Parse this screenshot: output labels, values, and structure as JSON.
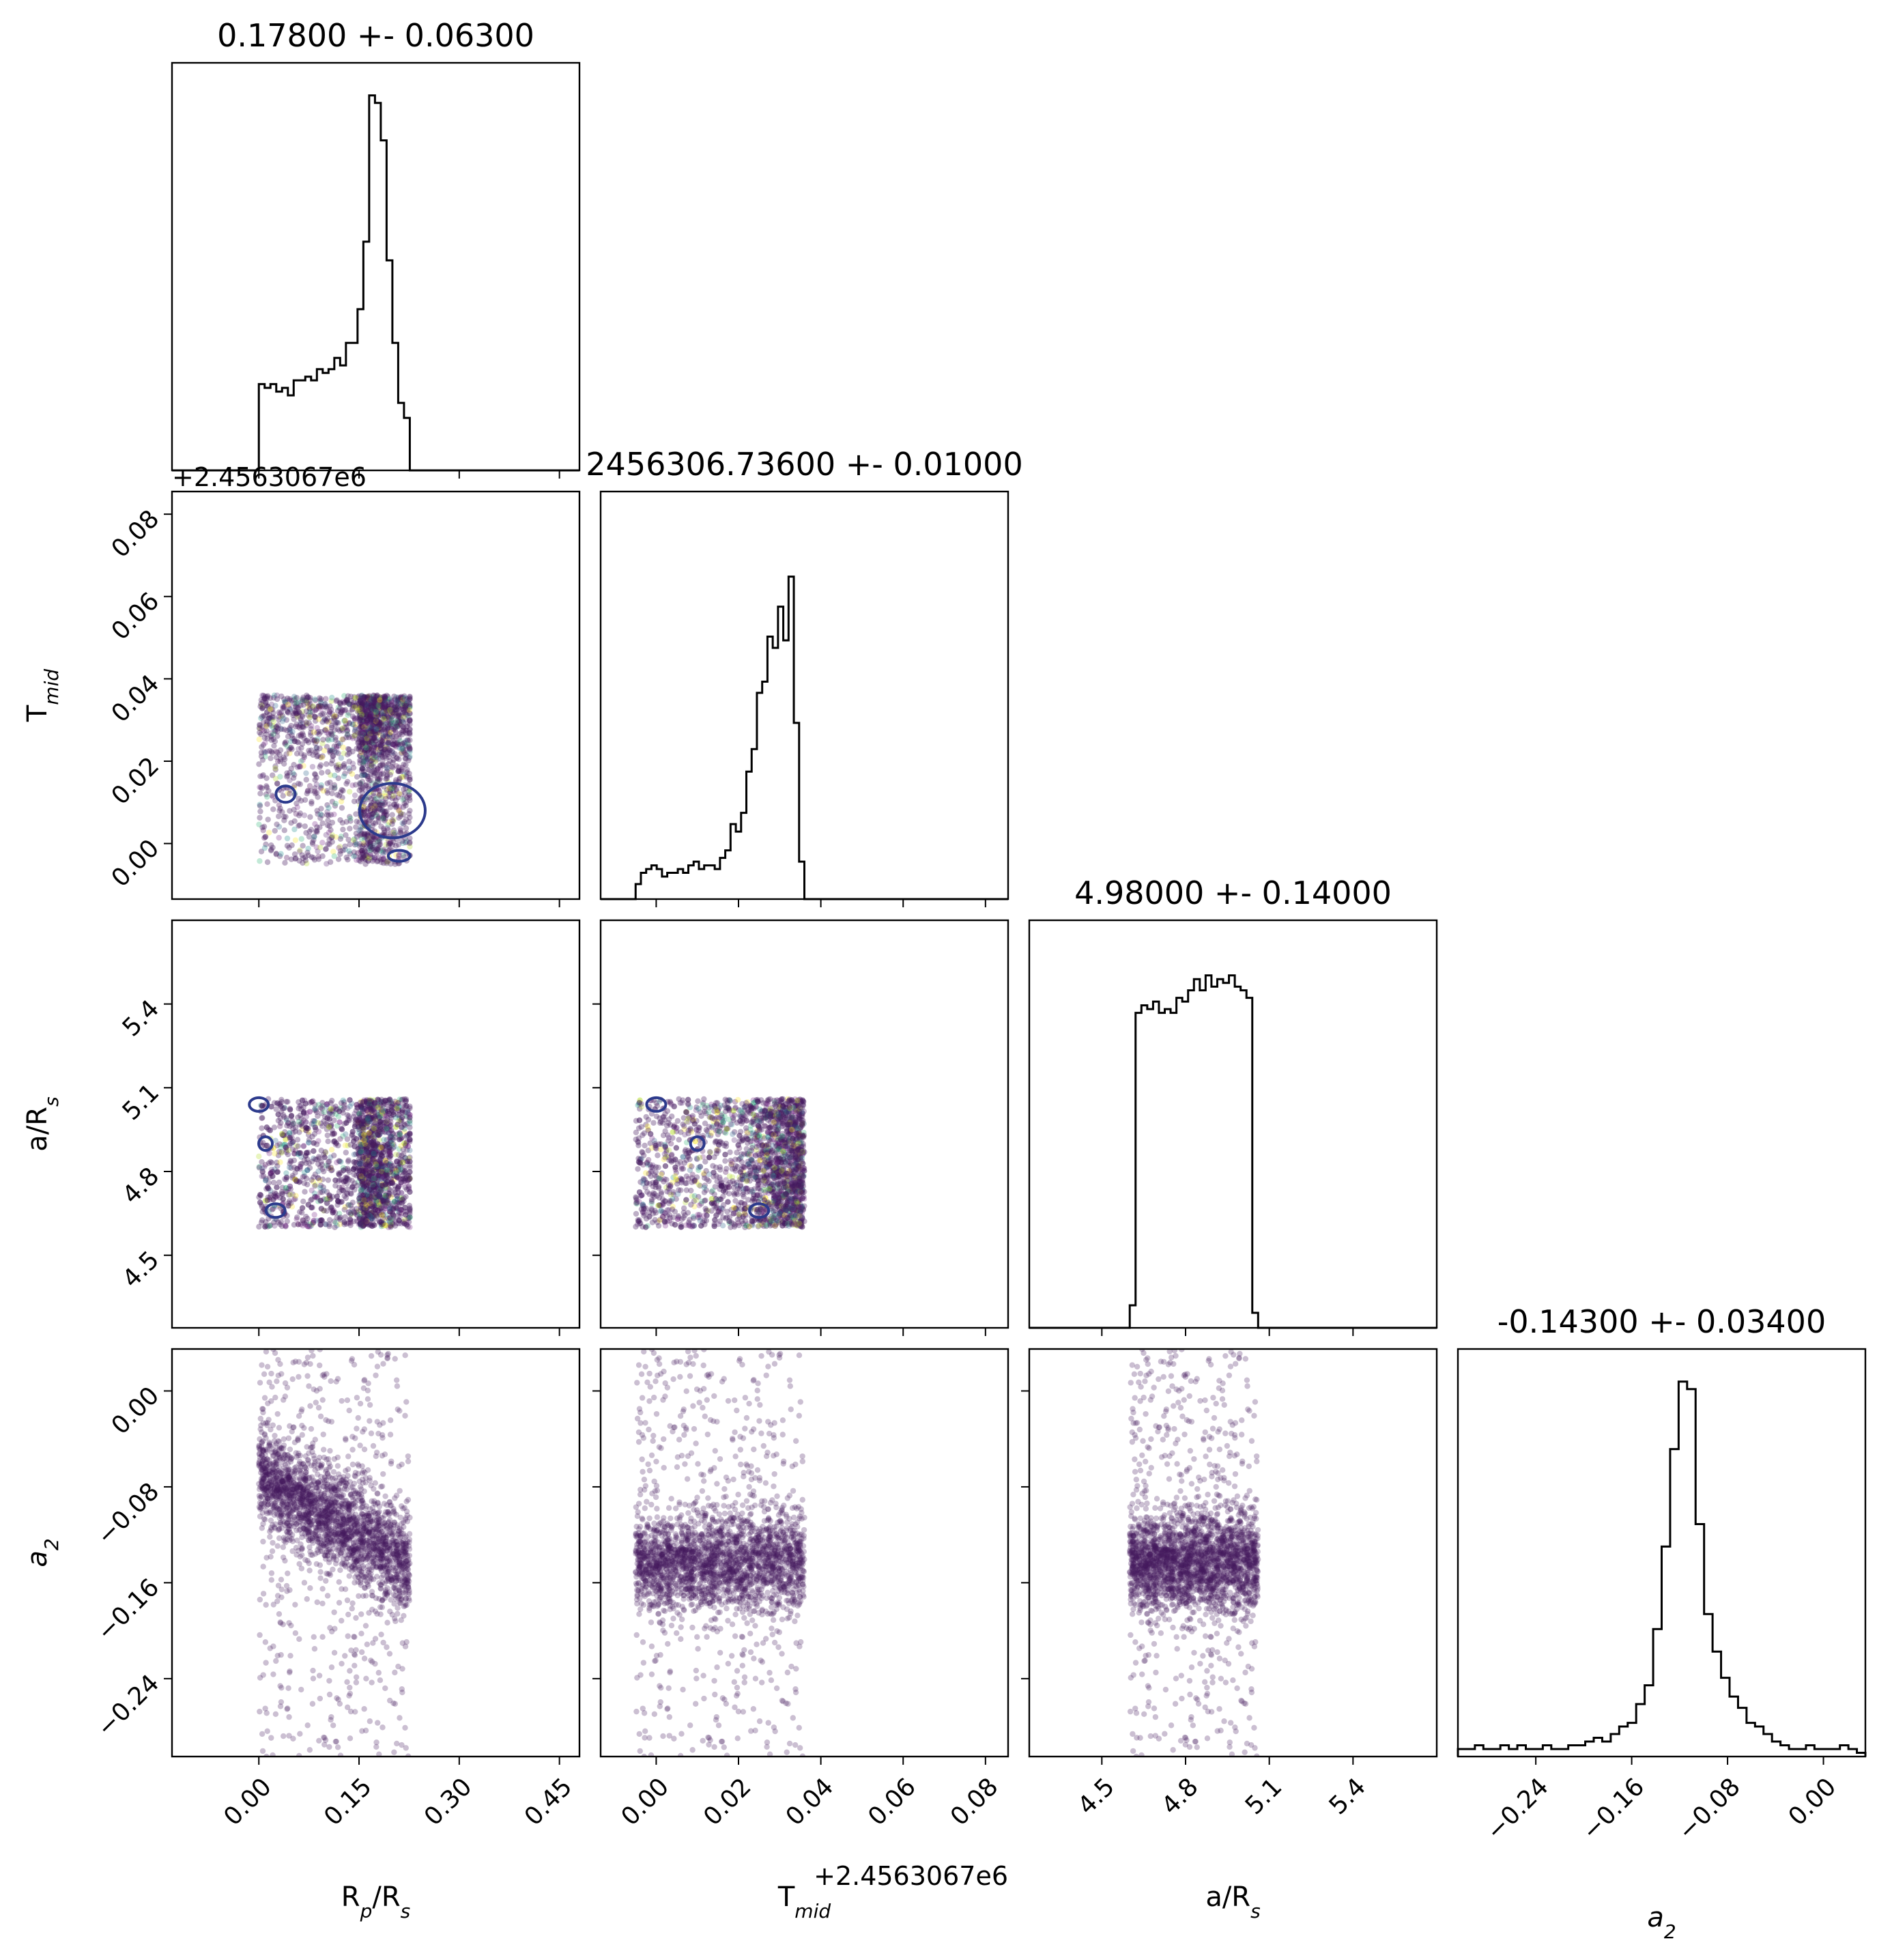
{
  "chart_data": {
    "type": "corner",
    "parameters": [
      {
        "key": "rp",
        "label_base": "R",
        "label_sub": "p",
        "label_tail": "/R",
        "label_tail_sub": "s",
        "title": "0.17800 +- 0.06300",
        "range": [
          -0.13,
          0.48
        ],
        "ticks": [
          0.0,
          0.15,
          0.3,
          0.45
        ],
        "tick_labels": [
          "0.00",
          "0.15",
          "0.30",
          "0.45"
        ],
        "offset_text": "",
        "uniform_range": [
          0.0,
          0.226
        ],
        "hist": [
          0.23,
          0.22,
          0.23,
          0.21,
          0.22,
          0.2,
          0.24,
          0.24,
          0.25,
          0.24,
          0.27,
          0.26,
          0.27,
          0.3,
          0.28,
          0.34,
          0.34,
          0.43,
          0.61,
          1.0,
          0.98,
          0.88,
          0.56,
          0.34,
          0.18,
          0.14
        ]
      },
      {
        "key": "tmid",
        "label_base": "T",
        "label_sub": "mid",
        "label_tail": "",
        "label_tail_sub": "",
        "title": "2456306.73600 +- 0.01000",
        "range": [
          -0.0135,
          0.0855
        ],
        "ticks": [
          0.0,
          0.02,
          0.04,
          0.06,
          0.08
        ],
        "tick_labels": [
          "0.00",
          "0.02",
          "0.04",
          "0.06",
          "0.08"
        ],
        "offset_text": "+2.4563067e6",
        "uniform_range": [
          -0.005,
          0.036
        ],
        "hist": [
          0.04,
          0.07,
          0.08,
          0.09,
          0.08,
          0.06,
          0.07,
          0.07,
          0.08,
          0.07,
          0.09,
          0.1,
          0.08,
          0.09,
          0.09,
          0.08,
          0.11,
          0.13,
          0.2,
          0.18,
          0.23,
          0.34,
          0.4,
          0.55,
          0.58,
          0.7,
          0.67,
          0.78,
          0.69,
          0.86,
          0.47,
          0.1
        ]
      },
      {
        "key": "ars",
        "label_base": "a/R",
        "label_sub": "s",
        "label_tail": "",
        "label_tail_sub": "",
        "title": "4.98000 +- 0.14000",
        "range": [
          4.24,
          5.7
        ],
        "ticks": [
          4.5,
          4.8,
          5.1,
          5.4
        ],
        "tick_labels": [
          "4.5",
          "4.8",
          "5.1",
          "5.4"
        ],
        "offset_text": "",
        "uniform_range": [
          4.6,
          5.06
        ],
        "hist": [
          0.06,
          0.84,
          0.86,
          0.85,
          0.87,
          0.84,
          0.85,
          0.84,
          0.88,
          0.87,
          0.9,
          0.93,
          0.9,
          0.94,
          0.91,
          0.93,
          0.92,
          0.94,
          0.91,
          0.9,
          0.88,
          0.04
        ]
      },
      {
        "key": "a2",
        "label_base": "a",
        "label_sub": "2",
        "label_tail": "",
        "label_tail_sub": "",
        "italic": true,
        "title": "-0.14300 +- 0.03400",
        "range": [
          -0.305,
          0.035
        ],
        "ticks": [
          -0.24,
          -0.16,
          -0.08,
          0.0
        ],
        "tick_labels": [
          "−0.24",
          "−0.16",
          "−0.08",
          "0.00"
        ],
        "offset_text": "",
        "uniform_range": [
          -0.305,
          0.035
        ],
        "hist": [
          0.02,
          0.02,
          0.03,
          0.02,
          0.02,
          0.03,
          0.02,
          0.03,
          0.02,
          0.02,
          0.03,
          0.02,
          0.02,
          0.03,
          0.03,
          0.04,
          0.05,
          0.04,
          0.06,
          0.08,
          0.09,
          0.14,
          0.19,
          0.34,
          0.56,
          0.82,
          1.0,
          0.98,
          0.62,
          0.38,
          0.28,
          0.21,
          0.16,
          0.13,
          0.09,
          0.08,
          0.06,
          0.04,
          0.03,
          0.02,
          0.02,
          0.03,
          0.02,
          0.02,
          0.02,
          0.03,
          0.02,
          0.01
        ]
      }
    ],
    "colors": {
      "hist_line": "#000000",
      "scatter": "#44195f",
      "scatter_multi": [
        "#440154",
        "#31688e",
        "#35b779",
        "#fde725",
        "#7a2a8c",
        "#21908d",
        "#5c2a7a",
        "#b5de2b"
      ],
      "contour": "#2c3a8c"
    },
    "grid": false,
    "legend": "none"
  }
}
